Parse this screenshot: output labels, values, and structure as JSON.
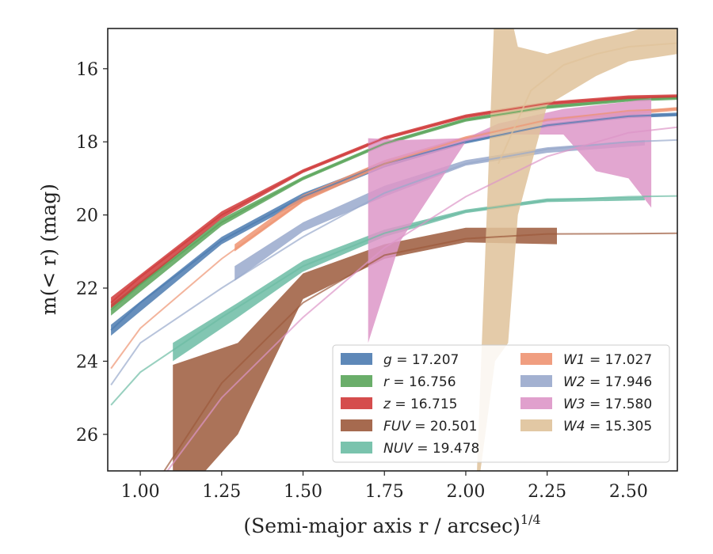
{
  "chart_data": {
    "type": "line",
    "xlabel": "(Semi-major axis r / arcsec)",
    "xlabel_exp": "1/4",
    "ylabel": "m(< r) (mag)",
    "xlim": [
      0.9,
      2.65
    ],
    "ylim": [
      27.0,
      14.9
    ],
    "xticks": [
      "1.00",
      "1.25",
      "1.50",
      "1.75",
      "2.00",
      "2.25",
      "2.50"
    ],
    "yticks": [
      "16",
      "18",
      "20",
      "22",
      "24",
      "26"
    ],
    "grid": false,
    "legend_position": "lower-right",
    "series": [
      {
        "name": "g = 17.207",
        "color": "#4c7bb0",
        "model": [
          [
            0.91,
            23.15
          ],
          [
            1.0,
            22.4
          ],
          [
            1.25,
            20.7
          ],
          [
            1.5,
            19.5
          ],
          [
            1.75,
            18.6
          ],
          [
            2.0,
            18.0
          ],
          [
            2.25,
            17.55
          ],
          [
            2.5,
            17.3
          ],
          [
            2.65,
            17.25
          ]
        ],
        "band": [
          [
            0.91,
            23.0,
            23.3
          ],
          [
            1.25,
            20.6,
            20.8
          ],
          [
            1.5,
            19.4,
            19.6
          ],
          [
            1.75,
            18.55,
            18.7
          ],
          [
            2.0,
            17.95,
            18.05
          ],
          [
            2.25,
            17.5,
            17.6
          ],
          [
            2.5,
            17.25,
            17.35
          ],
          [
            2.65,
            17.2,
            17.3
          ]
        ]
      },
      {
        "name": "r = 16.756",
        "color": "#5aa55a",
        "model": [
          [
            0.91,
            22.6
          ],
          [
            1.0,
            21.9
          ],
          [
            1.25,
            20.2
          ],
          [
            1.5,
            19.0
          ],
          [
            1.75,
            18.05
          ],
          [
            2.0,
            17.4
          ],
          [
            2.25,
            17.05
          ],
          [
            2.5,
            16.85
          ],
          [
            2.65,
            16.8
          ]
        ],
        "band": [
          [
            0.91,
            22.45,
            22.75
          ],
          [
            1.25,
            20.1,
            20.3
          ],
          [
            1.5,
            18.95,
            19.05
          ],
          [
            1.75,
            18.0,
            18.1
          ],
          [
            2.0,
            17.35,
            17.45
          ],
          [
            2.25,
            17.0,
            17.1
          ],
          [
            2.5,
            16.8,
            16.9
          ],
          [
            2.65,
            16.75,
            16.85
          ]
        ]
      },
      {
        "name": "z = 16.715",
        "color": "#d03a3a",
        "model": [
          [
            0.91,
            22.4
          ],
          [
            1.0,
            21.7
          ],
          [
            1.25,
            20.0
          ],
          [
            1.5,
            18.8
          ],
          [
            1.75,
            17.9
          ],
          [
            2.0,
            17.3
          ],
          [
            2.25,
            16.95
          ],
          [
            2.5,
            16.78
          ],
          [
            2.65,
            16.75
          ]
        ],
        "band": [
          [
            0.91,
            22.25,
            22.55
          ],
          [
            1.25,
            19.9,
            20.1
          ],
          [
            1.5,
            18.75,
            18.85
          ],
          [
            1.75,
            17.85,
            17.95
          ],
          [
            2.0,
            17.25,
            17.35
          ],
          [
            2.25,
            16.9,
            17.0
          ],
          [
            2.5,
            16.73,
            16.83
          ],
          [
            2.65,
            16.7,
            16.8
          ]
        ]
      },
      {
        "name": "FUV = 20.501",
        "color": "#9c5a3c",
        "model": [
          [
            1.0,
            28.0
          ],
          [
            1.25,
            24.6
          ],
          [
            1.5,
            22.4
          ],
          [
            1.75,
            21.1
          ],
          [
            2.0,
            20.65
          ],
          [
            2.25,
            20.52
          ],
          [
            2.5,
            20.51
          ],
          [
            2.65,
            20.5
          ]
        ],
        "band": [
          [
            1.1,
            24.1,
            28.0
          ],
          [
            1.3,
            23.5,
            26.0
          ],
          [
            1.5,
            21.6,
            22.3
          ],
          [
            1.75,
            20.8,
            21.2
          ],
          [
            2.0,
            20.35,
            20.75
          ],
          [
            2.28,
            20.35,
            20.8
          ]
        ]
      },
      {
        "name": "NUV = 19.478",
        "color": "#6cbca4",
        "model": [
          [
            0.91,
            25.2
          ],
          [
            1.0,
            24.3
          ],
          [
            1.25,
            22.8
          ],
          [
            1.5,
            21.4
          ],
          [
            1.75,
            20.5
          ],
          [
            2.0,
            19.9
          ],
          [
            2.25,
            19.6
          ],
          [
            2.5,
            19.5
          ],
          [
            2.65,
            19.48
          ]
        ],
        "band": [
          [
            1.1,
            23.5,
            24.0
          ],
          [
            1.3,
            22.4,
            22.8
          ],
          [
            1.5,
            21.25,
            21.55
          ],
          [
            1.75,
            20.4,
            20.6
          ],
          [
            2.0,
            19.85,
            19.95
          ],
          [
            2.25,
            19.55,
            19.65
          ],
          [
            2.55,
            19.5,
            19.6
          ]
        ]
      },
      {
        "name": "W1 = 17.027",
        "color": "#ee9472",
        "model": [
          [
            0.91,
            24.2
          ],
          [
            1.0,
            23.1
          ],
          [
            1.25,
            21.2
          ],
          [
            1.5,
            19.6
          ],
          [
            1.75,
            18.6
          ],
          [
            2.0,
            17.9
          ],
          [
            2.25,
            17.4
          ],
          [
            2.5,
            17.15
          ],
          [
            2.65,
            17.1
          ]
        ],
        "band": [
          [
            1.29,
            20.8,
            21.0
          ],
          [
            1.5,
            19.45,
            19.65
          ],
          [
            1.75,
            18.5,
            18.65
          ],
          [
            2.0,
            17.85,
            17.95
          ],
          [
            2.25,
            17.35,
            17.45
          ],
          [
            2.65,
            17.05,
            17.15
          ]
        ]
      },
      {
        "name": "W2 = 17.946",
        "color": "#99a9cc",
        "model": [
          [
            0.91,
            24.65
          ],
          [
            1.0,
            23.5
          ],
          [
            1.25,
            22.0
          ],
          [
            1.5,
            20.6
          ],
          [
            1.75,
            19.4
          ],
          [
            2.0,
            18.6
          ],
          [
            2.25,
            18.2
          ],
          [
            2.5,
            18.0
          ],
          [
            2.65,
            17.95
          ]
        ],
        "band": [
          [
            1.29,
            21.4,
            21.8
          ],
          [
            1.5,
            20.2,
            20.45
          ],
          [
            1.75,
            19.2,
            19.5
          ],
          [
            2.0,
            18.5,
            18.65
          ],
          [
            2.25,
            18.15,
            18.3
          ],
          [
            2.55,
            17.95,
            18.1
          ]
        ]
      },
      {
        "name": "W3 = 17.580",
        "color": "#dd96c8",
        "model": [
          [
            1.0,
            28.0
          ],
          [
            1.25,
            25.0
          ],
          [
            1.5,
            22.8
          ],
          [
            1.75,
            20.9
          ],
          [
            2.0,
            19.5
          ],
          [
            2.25,
            18.4
          ],
          [
            2.5,
            17.75
          ],
          [
            2.65,
            17.6
          ]
        ],
        "band": [
          [
            1.7,
            17.9,
            23.5
          ],
          [
            1.8,
            17.95,
            20.7
          ],
          [
            2.0,
            17.9,
            18.0
          ],
          [
            2.1,
            17.5,
            17.8
          ],
          [
            2.3,
            17.1,
            17.8
          ],
          [
            2.4,
            17.0,
            18.8
          ],
          [
            2.5,
            16.9,
            19.0
          ],
          [
            2.57,
            16.8,
            19.8
          ]
        ]
      },
      {
        "name": "W4 = 15.305",
        "color": "#dfc29a",
        "model": [
          [
            2.1,
            18.6
          ],
          [
            2.2,
            16.6
          ],
          [
            2.3,
            15.9
          ],
          [
            2.4,
            15.6
          ],
          [
            2.5,
            15.4
          ],
          [
            2.65,
            15.3
          ]
        ],
        "band": [
          [
            2.03,
            28.0,
            28.0
          ],
          [
            2.09,
            14.0,
            24.0
          ],
          [
            2.13,
            14.2,
            23.5
          ],
          [
            2.16,
            15.4,
            20.0
          ],
          [
            2.25,
            15.6,
            17.0
          ],
          [
            2.4,
            15.2,
            16.2
          ],
          [
            2.5,
            15.0,
            15.8
          ],
          [
            2.65,
            14.6,
            15.6
          ]
        ]
      }
    ]
  }
}
